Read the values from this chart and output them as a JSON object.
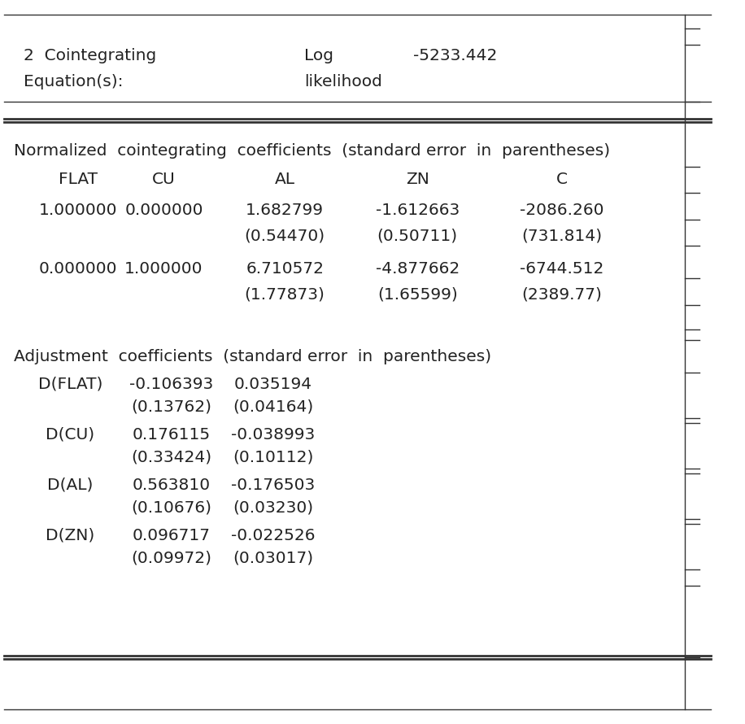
{
  "header_line1": "2  Cointegrating",
  "header_mid1": "Log",
  "header_val": "-5233.442",
  "header_line2": "Equation(s):",
  "header_mid2": "likelihood",
  "norm_title": "Normalized  cointegrating  coefficients  (standard error  in  parentheses)",
  "norm_headers": [
    "FLAT",
    "CU",
    "AL",
    "ZN",
    "C"
  ],
  "norm_row1": [
    "1.000000",
    "0.000000",
    "1.682799",
    "-1.612663",
    "-2086.260"
  ],
  "norm_row1_se": [
    "",
    "",
    "(0.54470)",
    "(0.50711)",
    "(731.814)"
  ],
  "norm_row2": [
    "0.000000",
    "1.000000",
    "6.710572",
    "-4.877662",
    "-6744.512"
  ],
  "norm_row2_se": [
    "",
    "",
    "(1.77873)",
    "(1.65599)",
    "(2389.77)"
  ],
  "adj_title": "Adjustment  coefficients  (standard error  in  parentheses)",
  "adj_rows": [
    {
      "label": "D(FLAT)",
      "v1": "-0.106393",
      "v2": "0.035194",
      "se1": "(0.13762)",
      "se2": "(0.04164)"
    },
    {
      "label": "D(CU)",
      "v1": "0.176115",
      "v2": "-0.038993",
      "se1": "(0.33424)",
      "se2": "(0.10112)"
    },
    {
      "label": "D(AL)",
      "v1": "0.563810",
      "v2": "-0.176503",
      "se1": "(0.10676)",
      "se2": "(0.03230)"
    },
    {
      "label": "D(ZN)",
      "v1": "0.096717",
      "v2": "-0.022526",
      "se1": "(0.09972)",
      "se2": "(0.03017)"
    }
  ],
  "bg_color": "#ffffff",
  "text_color": "#222222",
  "font_size": 14.5
}
